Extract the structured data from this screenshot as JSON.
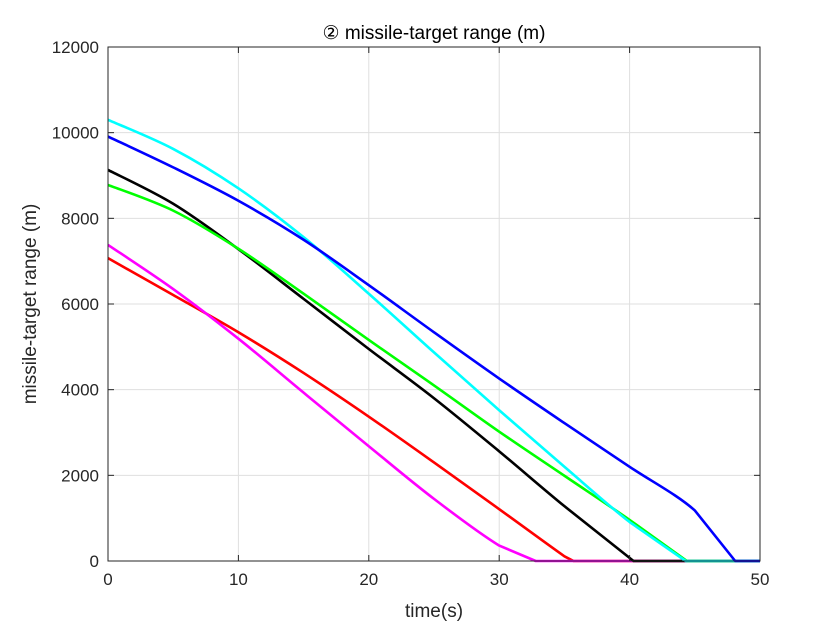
{
  "chart_data": {
    "type": "line",
    "title": "② missile-target range (m)",
    "xlabel": "time(s)",
    "ylabel": "missile-target range (m)",
    "xlim": [
      0,
      50
    ],
    "ylim": [
      0,
      12000
    ],
    "xticks": [
      "0",
      "10",
      "20",
      "30",
      "40",
      "50"
    ],
    "yticks": [
      "0",
      "2000",
      "4000",
      "6000",
      "8000",
      "10000",
      "12000"
    ],
    "grid": true,
    "legend": "none",
    "series": [
      {
        "color": "#ff0000",
        "x": [
          0,
          5,
          10,
          15,
          20,
          25,
          30,
          35,
          35.7,
          50
        ],
        "y": [
          7070,
          6210,
          5340,
          4390,
          3370,
          2300,
          1210,
          110,
          0,
          0
        ]
      },
      {
        "color": "#ff00ff",
        "x": [
          0,
          5,
          10,
          15,
          20,
          25,
          30,
          32.8,
          50
        ],
        "y": [
          7380,
          6350,
          5190,
          3930,
          2680,
          1450,
          360,
          0,
          0
        ]
      },
      {
        "color": "#000000",
        "x": [
          0,
          5,
          10,
          15,
          20,
          25,
          30,
          35,
          40.3,
          50
        ],
        "y": [
          9130,
          8340,
          7280,
          6120,
          4950,
          3800,
          2560,
          1280,
          0,
          0
        ]
      },
      {
        "color": "#00ff00",
        "x": [
          0,
          5,
          10,
          15,
          20,
          25,
          30,
          35,
          40,
          44.4,
          50
        ],
        "y": [
          8780,
          8180,
          7290,
          6240,
          5160,
          4100,
          3020,
          1990,
          960,
          0,
          0
        ]
      },
      {
        "color": "#00ffff",
        "x": [
          0,
          5,
          10,
          15,
          20,
          25,
          30,
          35,
          40,
          44.3,
          50
        ],
        "y": [
          10300,
          9620,
          8700,
          7560,
          6240,
          4870,
          3520,
          2200,
          910,
          0,
          0
        ]
      },
      {
        "color": "#0000ff",
        "x": [
          0,
          5,
          10,
          15,
          20,
          25,
          30,
          35,
          40,
          45,
          48.1,
          50
        ],
        "y": [
          9910,
          9190,
          8410,
          7500,
          6440,
          5340,
          4260,
          3220,
          2200,
          1180,
          0,
          0
        ]
      }
    ]
  }
}
